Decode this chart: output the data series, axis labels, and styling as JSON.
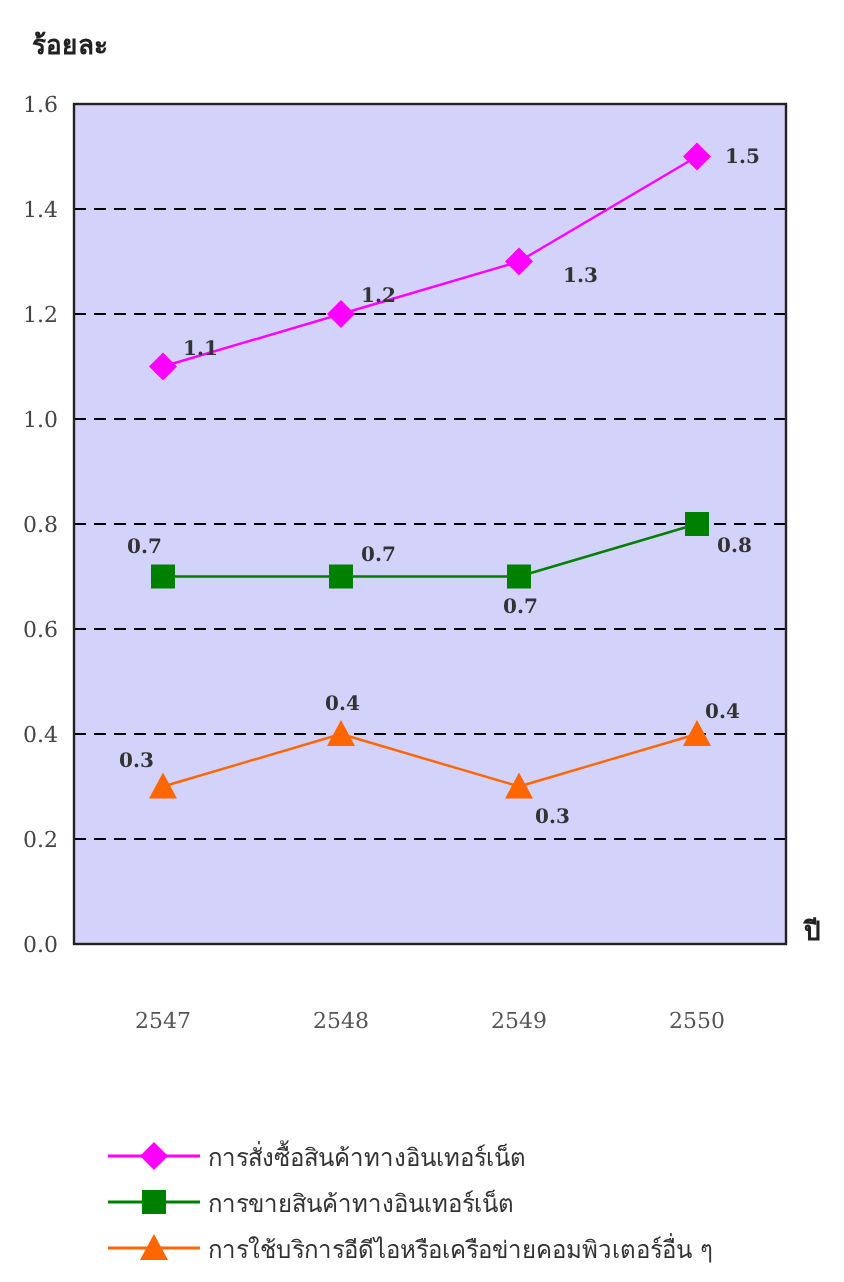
{
  "chart_data": {
    "type": "line",
    "ylabel": "ร้อยละ",
    "xlabel": "ปี",
    "categories": [
      "2547",
      "2548",
      "2549",
      "2550"
    ],
    "series": [
      {
        "name": "การสั่งซื้อสินค้าทางอินเทอร์เน็ต",
        "color": "#ff00ff",
        "marker": "diamond",
        "values": [
          1.1,
          1.2,
          1.3,
          1.5
        ]
      },
      {
        "name": "การขายสินค้าทางอินเทอร์เน็ต",
        "color": "#008000",
        "marker": "square",
        "values": [
          0.7,
          0.7,
          0.7,
          0.8
        ]
      },
      {
        "name": "การใช้บริการอีดีไอหรือเครือข่ายคอมพิวเตอร์อื่น ๆ",
        "color": "#ff6600",
        "marker": "triangle",
        "values": [
          0.3,
          0.4,
          0.3,
          0.4
        ]
      }
    ],
    "ylim": [
      0,
      1.6
    ],
    "yticks": [
      "0.0",
      "0.2",
      "0.4",
      "0.6",
      "0.8",
      "1.0",
      "1.2",
      "1.4",
      "1.6"
    ],
    "grid": "y",
    "legend": "bottom",
    "data_labels": true,
    "line_style": "solid"
  }
}
